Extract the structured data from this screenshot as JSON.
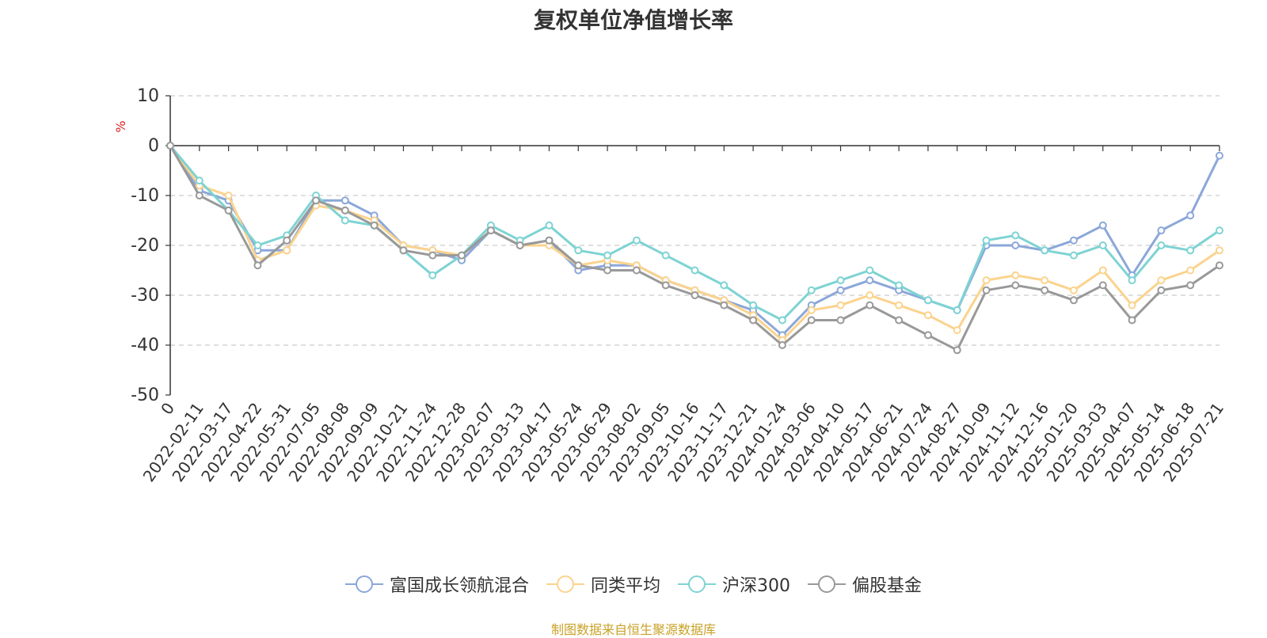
{
  "chart_data": {
    "type": "line",
    "title": "复权单位净值增长率",
    "ylabel": "%",
    "ylim": [
      -50,
      10
    ],
    "yticks": [
      10,
      0,
      -10,
      -20,
      -30,
      -40,
      -50
    ],
    "grid": true,
    "legend_position": "bottom",
    "x_tick_labels": [
      "0",
      "2022-02-11",
      "2022-03-17",
      "2022-04-22",
      "2022-05-31",
      "2022-07-05",
      "2022-08-08",
      "2022-09-09",
      "2022-10-21",
      "2022-11-24",
      "2022-12-28",
      "2023-02-07",
      "2023-03-13",
      "2023-04-17",
      "2023-05-24",
      "2023-06-29",
      "2023-08-02",
      "2023-09-05",
      "2023-10-16",
      "2023-11-17",
      "2023-12-21",
      "2024-01-24",
      "2024-03-06",
      "2024-04-10",
      "2024-05-17",
      "2024-06-21",
      "2024-07-24",
      "2024-08-27",
      "2024-10-09",
      "2024-11-12",
      "2024-12-16",
      "2025-01-20",
      "2025-03-03",
      "2025-04-07",
      "2025-05-14",
      "2025-06-18",
      "2025-07-21"
    ],
    "series": [
      {
        "name": "富国成长领航混合",
        "color": "#8ba7d9",
        "values": [
          0,
          -9,
          -11,
          -21,
          -21,
          -11,
          -11,
          -14,
          -20,
          -21,
          -23,
          -17,
          -20,
          -19,
          -25,
          -24,
          -24,
          -27,
          -29,
          -31,
          -33,
          -38,
          -32,
          -29,
          -27,
          -29,
          -31,
          -33,
          -20,
          -20,
          -21,
          -19,
          -16,
          -26,
          -17,
          -14,
          -2
        ]
      },
      {
        "name": "同类平均",
        "color": "#fbd38d",
        "values": [
          0,
          -8,
          -10,
          -23,
          -21,
          -12,
          -13,
          -15,
          -20,
          -21,
          -22,
          -17,
          -20,
          -20,
          -24,
          -23,
          -24,
          -27,
          -29,
          -31,
          -34,
          -39,
          -33,
          -32,
          -30,
          -32,
          -34,
          -37,
          -27,
          -26,
          -27,
          -29,
          -25,
          -32,
          -27,
          -25,
          -21
        ]
      },
      {
        "name": "沪深300",
        "color": "#7ed3d3",
        "values": [
          0,
          -7,
          -13,
          -20,
          -18,
          -10,
          -15,
          -16,
          -21,
          -26,
          -22,
          -16,
          -19,
          -16,
          -21,
          -22,
          -19,
          -22,
          -25,
          -28,
          -32,
          -35,
          -29,
          -27,
          -25,
          -28,
          -31,
          -33,
          -19,
          -18,
          -21,
          -22,
          -20,
          -27,
          -20,
          -21,
          -17
        ]
      },
      {
        "name": "偏股基金",
        "color": "#999999",
        "values": [
          0,
          -10,
          -13,
          -24,
          -19,
          -11,
          -13,
          -16,
          -21,
          -22,
          -22,
          -17,
          -20,
          -19,
          -24,
          -25,
          -25,
          -28,
          -30,
          -32,
          -35,
          -40,
          -35,
          -35,
          -32,
          -35,
          -38,
          -41,
          -29,
          -28,
          -29,
          -31,
          -28,
          -35,
          -29,
          -28,
          -24
        ]
      }
    ]
  },
  "footer": "制图数据来自恒生聚源数据库"
}
